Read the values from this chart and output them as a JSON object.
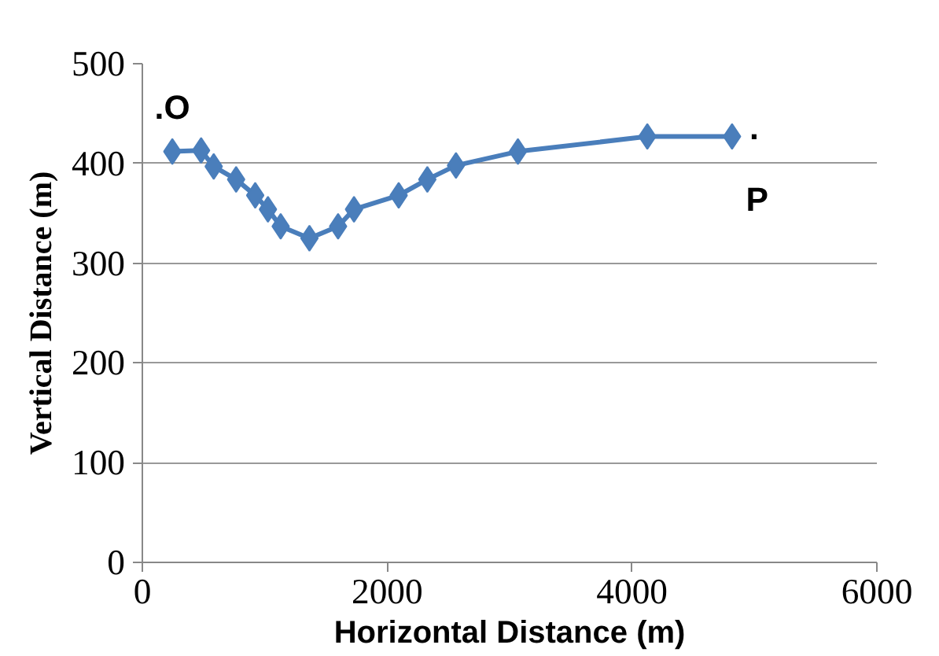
{
  "chart_data": {
    "type": "line",
    "xlabel": "Horizontal Distance (m)",
    "ylabel": "Vertical Distance (m)",
    "x": [
      245,
      480,
      583,
      766,
      922,
      1026,
      1130,
      1365,
      1599,
      1729,
      2094,
      2328,
      2562,
      3068,
      4125,
      4817
    ],
    "series": [
      {
        "color": "#4a7ebb",
        "values": [
          412,
          413,
          397,
          384,
          368,
          354,
          337,
          325,
          337,
          354,
          368,
          384,
          398,
          412,
          427,
          427
        ]
      }
    ],
    "xlim": [
      0,
      6000
    ],
    "xticks": [
      0,
      2000,
      4000,
      6000
    ],
    "ylim": [
      0,
      500
    ],
    "yticks": [
      0,
      100,
      200,
      300,
      400,
      500
    ],
    "grid": "y",
    "marker": "diamond",
    "line_style": "solid",
    "annotations": [
      ".O",
      ".",
      "P"
    ]
  }
}
